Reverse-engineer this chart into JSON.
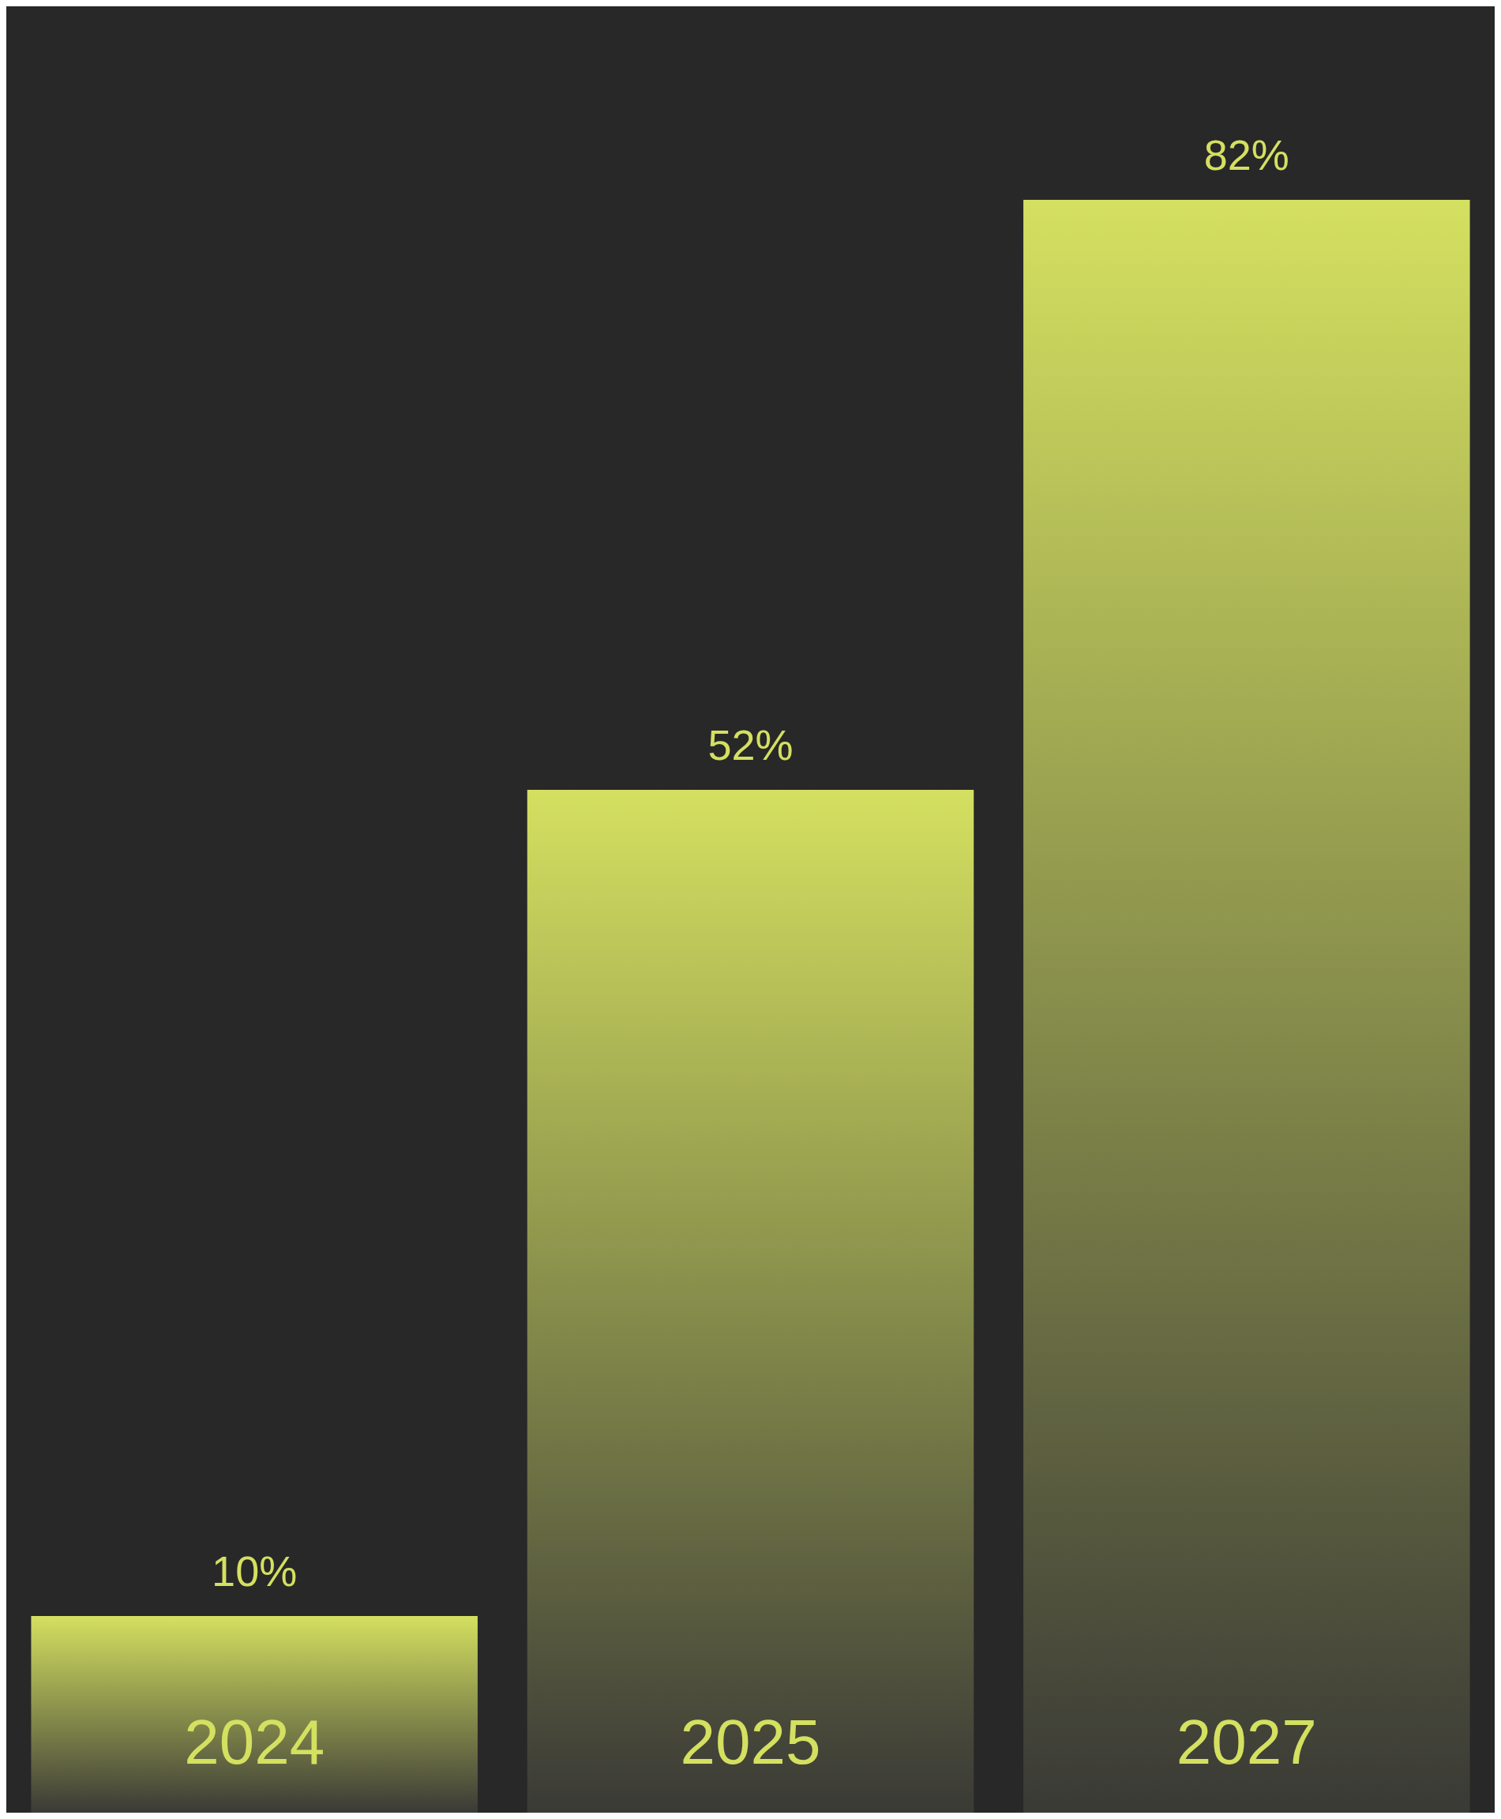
{
  "chart_data": {
    "type": "bar",
    "categories": [
      "2024",
      "2025",
      "2027"
    ],
    "values": [
      10,
      52,
      82
    ],
    "color": "#d4e060",
    "data_labels": true,
    "value_labels": [
      "10%",
      "52%",
      "82%"
    ]
  }
}
